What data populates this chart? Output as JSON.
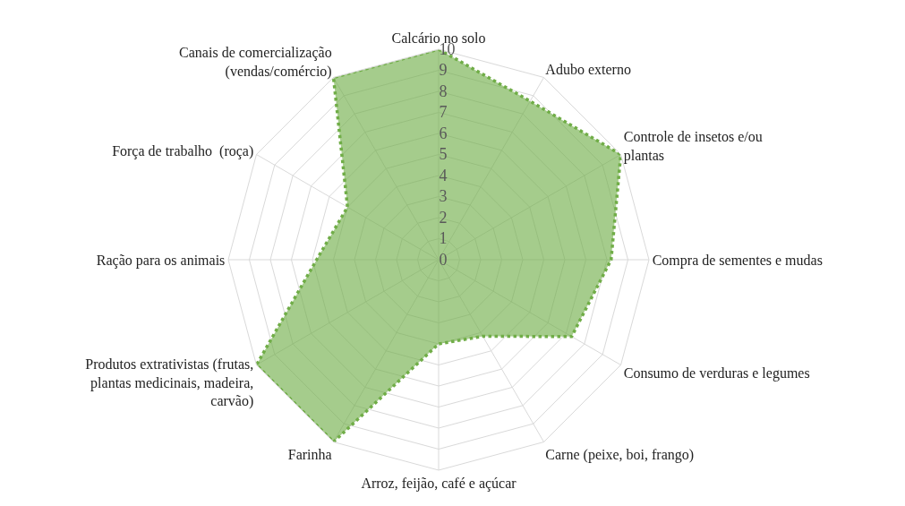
{
  "chart_data": {
    "type": "radar",
    "categories": [
      "Calcário no solo",
      "Adubo externo",
      "Controle de insetos e/ou plantas",
      "Compra de sementes e mudas",
      "Consumo de verduras e legumes",
      "Carne (peixe, boi, frango)",
      "Arroz, feijão, café e açúcar",
      "Farinha",
      "Produtos extrativistas (frutas, plantas medicinais, madeira, carvão)",
      "Ração para os animais",
      "Força de trabalho  (roça)",
      "Canais de comercialização (vendas/comércio)"
    ],
    "series": [
      {
        "color": "#70ad47",
        "values": [
          10,
          8.7,
          10,
          8.2,
          7.3,
          4.2,
          4,
          10,
          10,
          5.8,
          5,
          10
        ]
      }
    ],
    "ylim": [
      0,
      10
    ],
    "yticks": [
      0,
      1,
      2,
      3,
      4,
      5,
      6,
      7,
      8,
      9,
      10
    ],
    "grid": true,
    "line_style": "dotted",
    "marker": "none"
  }
}
